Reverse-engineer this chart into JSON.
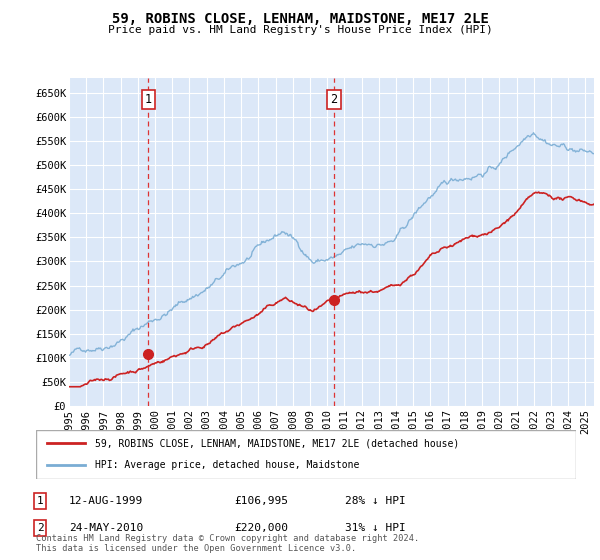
{
  "title": "59, ROBINS CLOSE, LENHAM, MAIDSTONE, ME17 2LE",
  "subtitle": "Price paid vs. HM Land Registry's House Price Index (HPI)",
  "ylabel_ticks": [
    "£0",
    "£50K",
    "£100K",
    "£150K",
    "£200K",
    "£250K",
    "£300K",
    "£350K",
    "£400K",
    "£450K",
    "£500K",
    "£550K",
    "£600K",
    "£650K"
  ],
  "ytick_vals": [
    0,
    50000,
    100000,
    150000,
    200000,
    250000,
    300000,
    350000,
    400000,
    450000,
    500000,
    550000,
    600000,
    650000
  ],
  "ylim": [
    0,
    680000
  ],
  "xlim_start": 1995.0,
  "xlim_end": 2025.5,
  "plot_bg_color": "#dce8f8",
  "grid_color": "#ffffff",
  "hpi_color": "#7aadd4",
  "price_color": "#cc2222",
  "marker1_date": 1999.615,
  "marker1_price": 106995,
  "marker1_label": "12-AUG-1999",
  "marker1_text": "£106,995",
  "marker1_pct": "28% ↓ HPI",
  "marker2_date": 2010.388,
  "marker2_price": 220000,
  "marker2_label": "24-MAY-2010",
  "marker2_text": "£220,000",
  "marker2_pct": "31% ↓ HPI",
  "legend_label1": "59, ROBINS CLOSE, LENHAM, MAIDSTONE, ME17 2LE (detached house)",
  "legend_label2": "HPI: Average price, detached house, Maidstone",
  "footnote": "Contains HM Land Registry data © Crown copyright and database right 2024.\nThis data is licensed under the Open Government Licence v3.0.",
  "xtick_years": [
    1995,
    1996,
    1997,
    1998,
    1999,
    2000,
    2001,
    2002,
    2003,
    2004,
    2005,
    2006,
    2007,
    2008,
    2009,
    2010,
    2011,
    2012,
    2013,
    2014,
    2015,
    2016,
    2017,
    2018,
    2019,
    2020,
    2021,
    2022,
    2023,
    2024,
    2025
  ]
}
